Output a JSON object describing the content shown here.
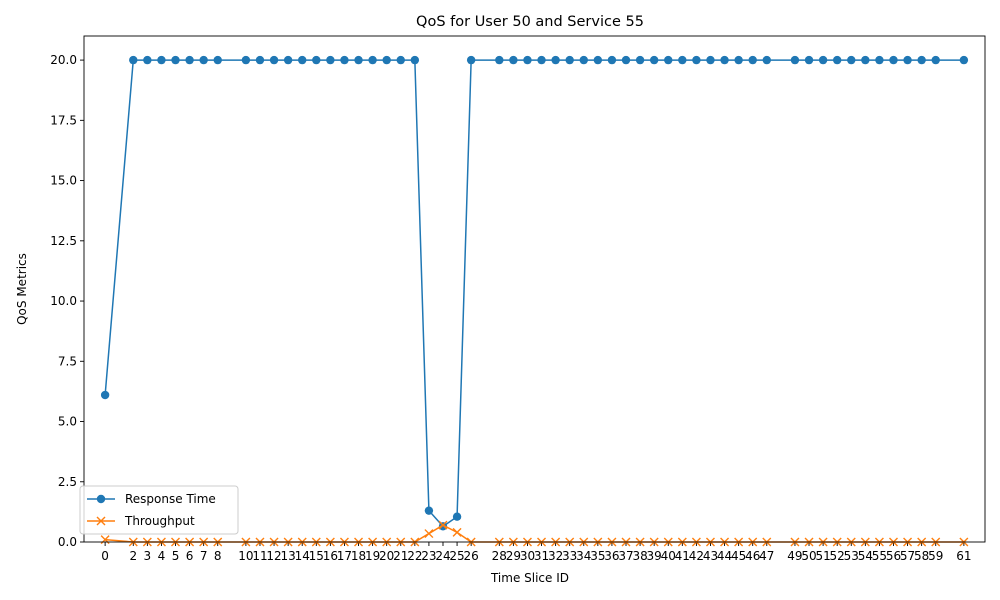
{
  "chart_data": {
    "type": "line",
    "title": "QoS for User 50 and Service 55",
    "xlabel": "Time Slice ID",
    "ylabel": "QoS Metrics",
    "ylim": [
      0,
      21
    ],
    "yticks": [
      "0.0",
      "2.5",
      "5.0",
      "7.5",
      "10.0",
      "12.5",
      "15.0",
      "17.5",
      "20.0"
    ],
    "ytick_values": [
      0,
      2.5,
      5,
      7.5,
      10,
      12.5,
      15,
      17.5,
      20
    ],
    "x": [
      0,
      2,
      3,
      4,
      5,
      6,
      7,
      8,
      10,
      11,
      12,
      13,
      14,
      15,
      16,
      17,
      18,
      19,
      20,
      21,
      22,
      23,
      24,
      25,
      26,
      28,
      29,
      30,
      31,
      32,
      33,
      34,
      35,
      36,
      37,
      38,
      39,
      40,
      41,
      42,
      43,
      44,
      45,
      46,
      47,
      49,
      50,
      51,
      52,
      53,
      54,
      55,
      56,
      57,
      58,
      59,
      61
    ],
    "xlim": [
      -1.5,
      62.5
    ],
    "grid": false,
    "legend_position": "lower-left",
    "series": [
      {
        "name": "Response Time",
        "color": "#1f77b4",
        "marker": "circle",
        "values": [
          6.1,
          20,
          20,
          20,
          20,
          20,
          20,
          20,
          20,
          20,
          20,
          20,
          20,
          20,
          20,
          20,
          20,
          20,
          20,
          20,
          20,
          1.3,
          0.65,
          1.05,
          20,
          20,
          20,
          20,
          20,
          20,
          20,
          20,
          20,
          20,
          20,
          20,
          20,
          20,
          20,
          20,
          20,
          20,
          20,
          20,
          20,
          20,
          20,
          20,
          20,
          20,
          20,
          20,
          20,
          20,
          20,
          20,
          20
        ]
      },
      {
        "name": "Throughput",
        "color": "#ff7f0e",
        "marker": "x",
        "values": [
          0.1,
          0,
          0,
          0,
          0,
          0,
          0,
          0,
          0,
          0,
          0,
          0,
          0,
          0,
          0,
          0,
          0,
          0,
          0,
          0,
          0,
          0.35,
          0.7,
          0.4,
          0,
          0,
          0,
          0,
          0,
          0,
          0,
          0,
          0,
          0,
          0,
          0,
          0,
          0,
          0,
          0,
          0,
          0,
          0,
          0,
          0,
          0,
          0,
          0,
          0,
          0,
          0,
          0,
          0,
          0,
          0,
          0,
          0
        ]
      }
    ]
  }
}
